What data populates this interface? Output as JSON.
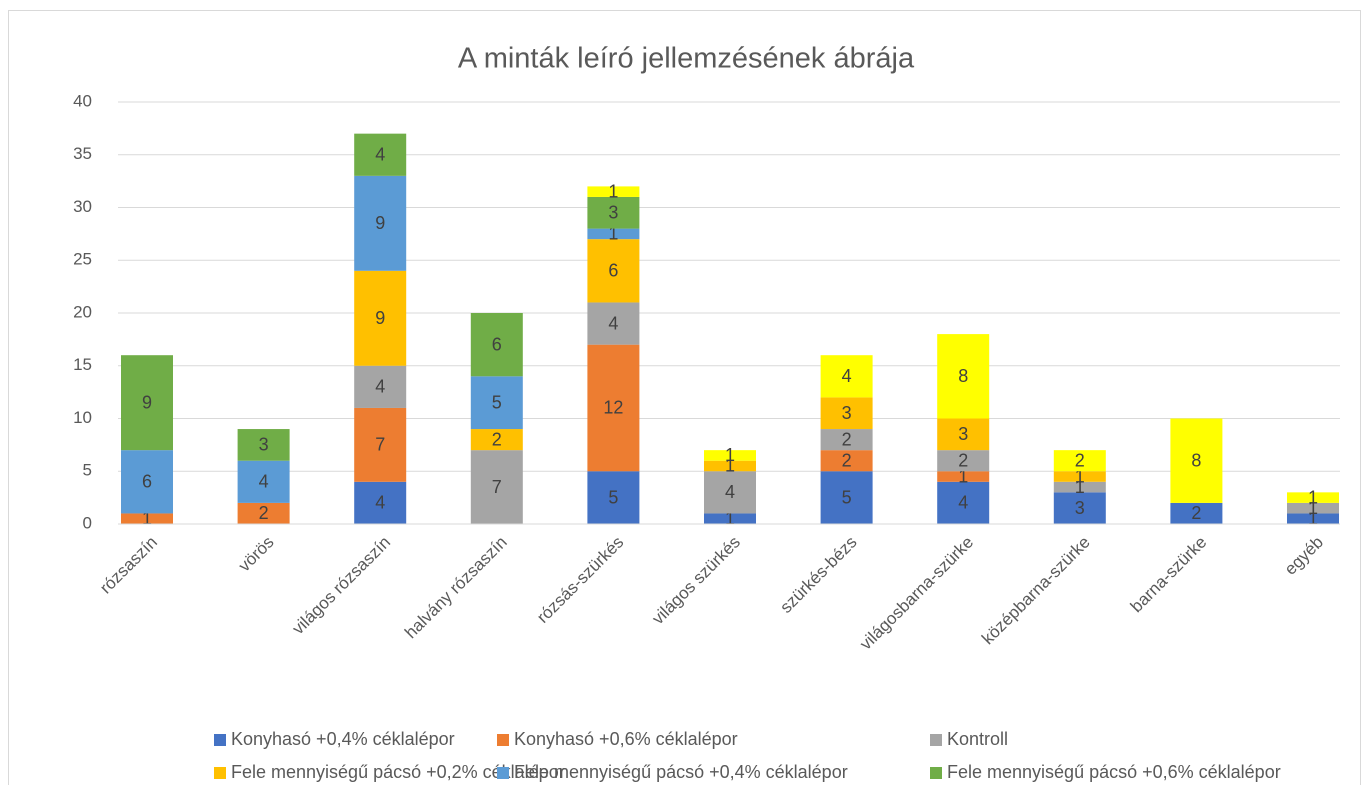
{
  "chart_data": {
    "type": "stacked_bar",
    "title": "A minták leíró jellemzésének ábrája",
    "categories": [
      "rózsaszín",
      "vörös",
      "világos rózsaszín",
      "halvány rózsaszín",
      "rózsás-szürkés",
      "világos szürkés",
      "szürkés-bézs",
      "világosbarna-szürke",
      "középbarna-szürke",
      "barna-szürke",
      "egyéb"
    ],
    "series": [
      {
        "name": "Konyhasó +0,4% céklalépor",
        "color": "#4472c4",
        "values": [
          null,
          null,
          4,
          null,
          5,
          1,
          5,
          4,
          3,
          2,
          1
        ]
      },
      {
        "name": "Konyhasó +0,6% céklalépor",
        "color": "#ed7d31",
        "values": [
          1,
          2,
          7,
          null,
          12,
          null,
          2,
          1,
          null,
          null,
          null
        ]
      },
      {
        "name": "Kontroll",
        "color": "#a5a5a5",
        "values": [
          null,
          null,
          4,
          7,
          4,
          4,
          2,
          2,
          1,
          null,
          1
        ]
      },
      {
        "name": "Fele mennyiségű pácsó +0,2% céklalépor",
        "color": "#ffc000",
        "values": [
          null,
          null,
          9,
          2,
          6,
          1,
          3,
          3,
          1,
          null,
          null
        ]
      },
      {
        "name": "Fele mennyiségű pácsó +0,4% céklalépor",
        "color": "#5b9bd5",
        "values": [
          6,
          4,
          9,
          5,
          1,
          null,
          null,
          null,
          null,
          null,
          null
        ]
      },
      {
        "name": "Fele mennyiségű pácsó +0,6% céklalépor",
        "color": "#70ad47",
        "values": [
          9,
          3,
          4,
          6,
          3,
          null,
          null,
          null,
          null,
          null,
          null
        ]
      },
      {
        "color": "#ffff00",
        "values": [
          null,
          null,
          null,
          null,
          1,
          1,
          4,
          8,
          2,
          8,
          1
        ]
      }
    ],
    "ylim": [
      0,
      40
    ],
    "yticks": [
      0,
      5,
      10,
      15,
      20,
      25,
      30,
      35,
      40
    ],
    "grid": true,
    "legend": "bottom"
  }
}
